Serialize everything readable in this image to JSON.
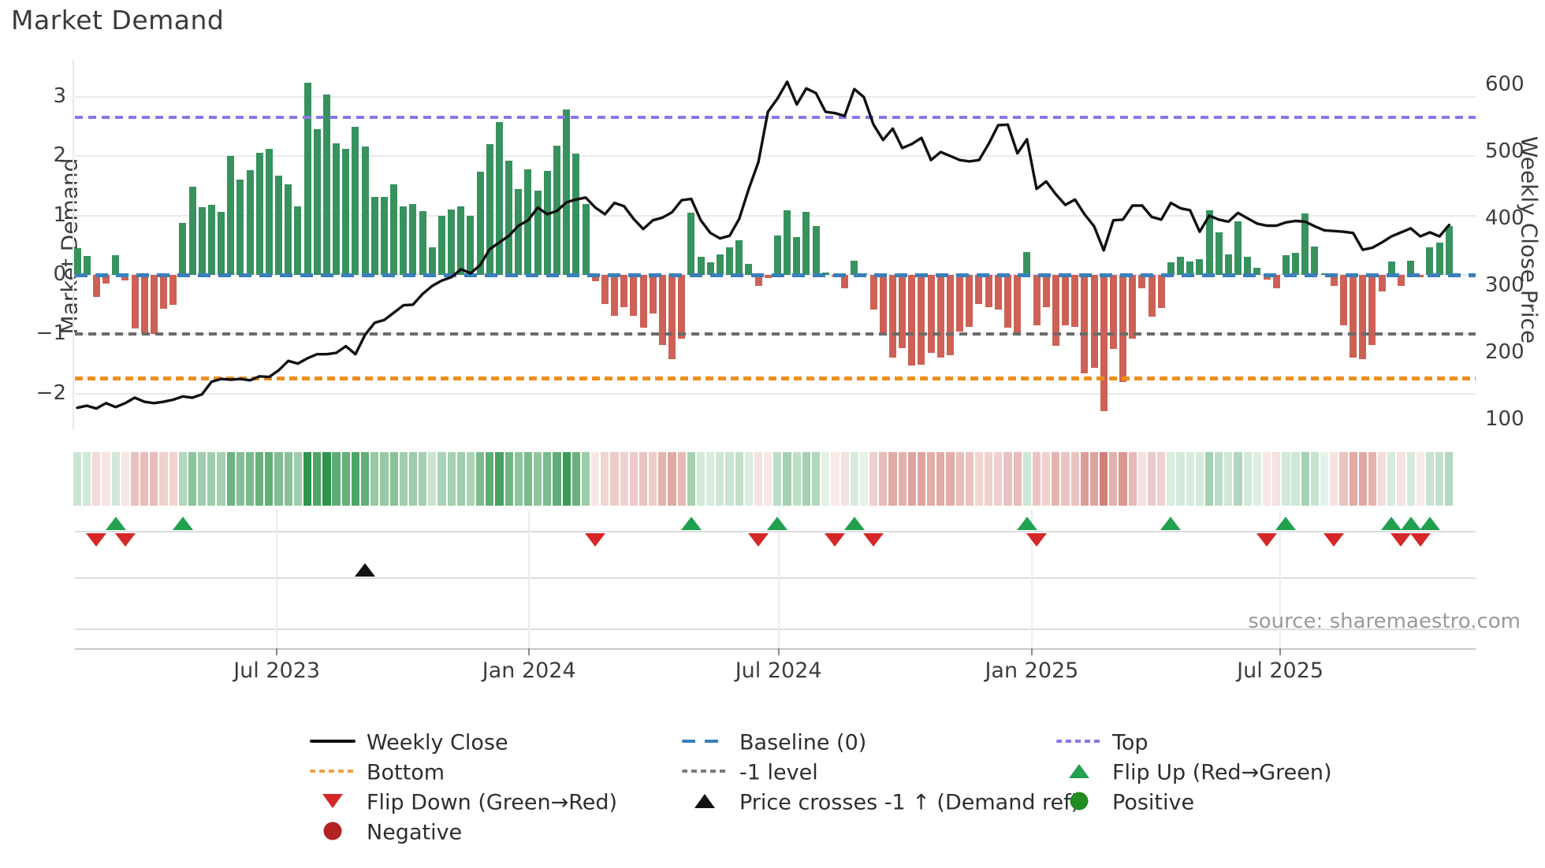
{
  "title": "Market Demand",
  "source_note": "source: sharemaestro.com",
  "colors": {
    "bar_positive": "#37925e",
    "bar_negative": "#cd6155",
    "price_line": "#111111",
    "baseline": "#3a7fb8",
    "top_line": "#8678e9",
    "bottom_line": "#ef8e1b",
    "minus_one_line": "#6b6b6b",
    "flip_up": "#21a050",
    "flip_down": "#d62728",
    "price_cross": "#111111",
    "positive_dot": "#228b22",
    "negative_dot": "#b22222"
  },
  "legend": {
    "columns": [
      {
        "items": [
          {
            "swatch": "line-solid",
            "color": "#111111",
            "label": "Weekly Close"
          },
          {
            "swatch": "line-dotted",
            "color": "#f0a04a",
            "label": "Bottom"
          },
          {
            "swatch": "triangle-down",
            "color": "#d62728",
            "label": "Flip Down (Green→Red)"
          },
          {
            "swatch": "circle",
            "color": "#b22222",
            "label": "Negative"
          }
        ]
      },
      {
        "items": [
          {
            "swatch": "line-dashed",
            "color": "#3a7fb8",
            "label": "Baseline (0)"
          },
          {
            "swatch": "line-dotted",
            "color": "#7a7a7a",
            "label": "-1 level"
          },
          {
            "swatch": "triangle-up",
            "color": "#111111",
            "label": "Price crosses -1 ↑ (Demand ref)"
          }
        ]
      },
      {
        "items": [
          {
            "swatch": "line-dotted",
            "color": "#8678e9",
            "label": "Top"
          },
          {
            "swatch": "triangle-up",
            "color": "#21a050",
            "label": "Flip Up (Red→Green)"
          },
          {
            "swatch": "circle",
            "color": "#228b22",
            "label": "Positive"
          }
        ]
      }
    ]
  },
  "chart_data": {
    "type": "combo",
    "n_weeks": 144,
    "x_tick_labels": [
      "Jul 2023",
      "Jan 2024",
      "Jul 2024",
      "Jan 2025",
      "Jul 2025"
    ],
    "x_tick_week_positions": [
      21.8,
      48.1,
      74.1,
      100.5,
      126.4
    ],
    "y_left": {
      "label": "Market Demand",
      "ticks": [
        3,
        2,
        1,
        0,
        -1,
        -2
      ],
      "range": [
        -2.62,
        3.63
      ]
    },
    "y_right": {
      "label": "Weekly Close Price",
      "ticks": [
        600,
        500,
        400,
        300,
        200,
        100
      ],
      "range": [
        86,
        639
      ]
    },
    "reference_lines": {
      "baseline": 0,
      "top": 2.65,
      "bottom": -1.75,
      "minus_one_level": -1
    },
    "markers": {
      "flip_up_weeks": [
        5,
        12,
        65,
        74,
        82,
        100,
        115,
        127,
        138,
        140,
        142
      ],
      "flip_down_weeks": [
        3,
        6,
        55,
        72,
        80,
        84,
        101,
        125,
        132,
        139,
        141
      ],
      "price_cross_up_weeks": [
        31
      ]
    },
    "series": [
      {
        "name": "Market Demand",
        "type": "bar",
        "values": [
          0.45,
          0.32,
          -0.37,
          -0.15,
          0.33,
          -0.09,
          -0.9,
          -0.98,
          -0.99,
          -0.57,
          -0.5,
          0.87,
          1.49,
          1.14,
          1.18,
          1.06,
          2.0,
          1.61,
          1.76,
          2.06,
          2.13,
          1.67,
          1.52,
          1.15,
          3.24,
          2.45,
          3.04,
          2.22,
          2.12,
          2.49,
          2.16,
          1.32,
          1.31,
          1.53,
          1.15,
          1.2,
          1.08,
          0.46,
          1.0,
          1.1,
          1.15,
          1.0,
          1.74,
          2.2,
          2.57,
          1.92,
          1.45,
          1.78,
          1.42,
          1.75,
          2.18,
          2.79,
          2.05,
          1.2,
          -0.1,
          -0.49,
          -0.69,
          -0.54,
          -0.69,
          -0.89,
          -0.65,
          -1.18,
          -1.42,
          -1.07,
          1.05,
          0.3,
          0.21,
          0.35,
          0.46,
          0.59,
          0.18,
          -0.18,
          -0.05,
          0.67,
          1.09,
          0.64,
          1.06,
          0.82,
          0.04,
          -0.03,
          -0.22,
          0.24,
          0.02,
          -0.59,
          -1.01,
          -1.4,
          -1.24,
          -1.53,
          -1.51,
          -1.31,
          -1.4,
          -1.35,
          -0.96,
          -0.87,
          -0.49,
          -0.55,
          -0.58,
          -0.89,
          -1.0,
          0.39,
          -0.85,
          -0.55,
          -1.19,
          -0.85,
          -0.87,
          -1.66,
          -1.57,
          -2.3,
          -1.25,
          -1.8,
          -1.07,
          -0.22,
          -0.7,
          -0.56,
          0.21,
          0.3,
          0.23,
          0.26,
          1.09,
          0.72,
          0.35,
          0.9,
          0.3,
          0.12,
          -0.08,
          -0.22,
          0.33,
          0.37,
          1.04,
          0.48,
          0.03,
          -0.18,
          -0.85,
          -1.4,
          -1.42,
          -1.18,
          -0.28,
          0.23,
          -0.19,
          0.24,
          -0.04,
          0.47,
          0.55,
          0.82
        ]
      },
      {
        "name": "Weekly Close",
        "type": "line",
        "values": [
          118,
          121,
          117,
          125,
          119,
          125,
          133,
          127,
          125,
          127,
          130,
          135,
          133,
          138,
          157,
          161,
          160,
          161,
          159,
          165,
          164,
          174,
          188,
          184,
          192,
          198,
          198,
          200,
          210,
          198,
          227,
          245,
          249,
          260,
          271,
          272,
          288,
          300,
          308,
          313,
          325,
          319,
          331,
          355,
          365,
          375,
          390,
          398,
          417,
          407,
          412,
          425,
          429,
          432,
          417,
          407,
          424,
          419,
          400,
          385,
          398,
          402,
          410,
          428,
          430,
          398,
          379,
          371,
          375,
          400,
          445,
          485,
          560,
          580,
          605,
          571,
          595,
          588,
          560,
          558,
          554,
          594,
          582,
          541,
          518,
          535,
          506,
          512,
          521,
          488,
          500,
          494,
          488,
          486,
          488,
          512,
          540,
          541,
          498,
          519,
          445,
          456,
          437,
          421,
          429,
          407,
          389,
          353,
          398,
          399,
          420,
          420,
          403,
          399,
          424,
          416,
          413,
          381,
          405,
          399,
          396,
          409,
          401,
          393,
          390,
          390,
          395,
          397,
          396,
          389,
          383,
          382,
          381,
          379,
          354,
          357,
          365,
          374,
          380,
          386,
          374,
          380,
          374,
          391
        ]
      }
    ],
    "heatmap": {
      "note": "strip mirrors sign and magnitude of Market Demand bars"
    }
  }
}
